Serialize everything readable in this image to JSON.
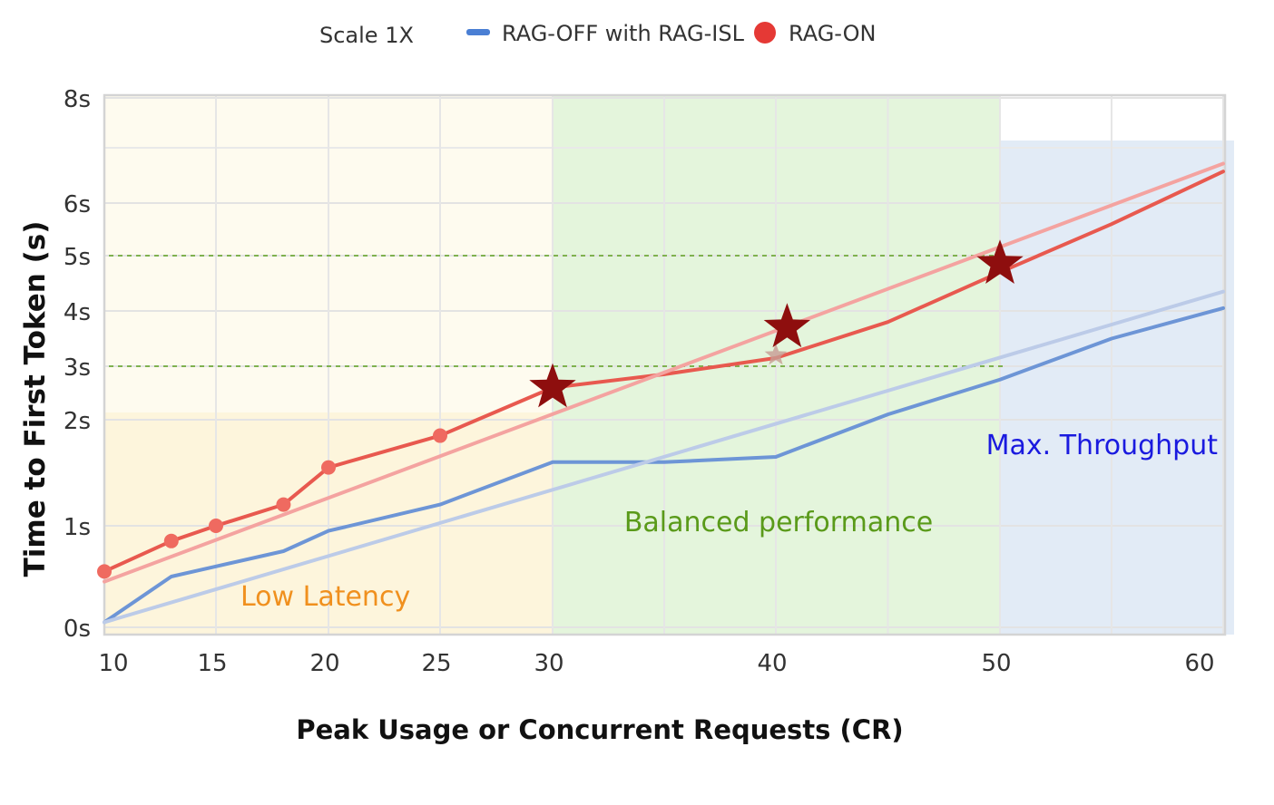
{
  "chart_data": {
    "type": "line",
    "title": "",
    "xlabel": "Peak Usage or Concurrent Requests (CR)",
    "ylabel": "Time to First Token (s)",
    "x_ticks": [
      10,
      15,
      20,
      25,
      30,
      40,
      50,
      60
    ],
    "x_tick_labels": [
      "10",
      "15",
      "20",
      "25",
      "30",
      "40",
      "50",
      "60"
    ],
    "y_ticks": [
      0,
      1,
      2,
      3,
      4,
      5,
      6,
      8
    ],
    "y_tick_labels": [
      "0s",
      "1s",
      "2s",
      "3s",
      "4s",
      "5s",
      "6s",
      "8s"
    ],
    "xlim": [
      10,
      61
    ],
    "ylim": [
      0,
      8
    ],
    "legend": {
      "position": "top-center",
      "items": [
        {
          "label": "Scale 1X",
          "marker": "none"
        },
        {
          "label": "RAG-OFF with RAG-ISL",
          "marker": "line",
          "color": "#4a7fd4"
        },
        {
          "label": "RAG-ON",
          "marker": "dot",
          "color": "#e53935"
        }
      ]
    },
    "series": [
      {
        "name": "RAG-ON",
        "color": "#e8594f",
        "x": [
          10,
          13,
          15,
          18,
          20,
          25,
          30,
          35,
          40,
          45,
          50,
          55,
          60
        ],
        "y": [
          0.55,
          0.85,
          1.0,
          1.2,
          1.55,
          1.85,
          2.6,
          2.85,
          3.15,
          3.8,
          4.7,
          5.6,
          6.6
        ],
        "markers_at": [
          10,
          13,
          15,
          18,
          20,
          25
        ]
      },
      {
        "name": "RAG-ON trend",
        "color": "#f4a3a0",
        "x": [
          10,
          60
        ],
        "y": [
          0.45,
          6.75
        ]
      },
      {
        "name": "RAG-OFF with RAG-ISL",
        "color": "#6d95d6",
        "x": [
          10,
          13,
          15,
          18,
          20,
          25,
          30,
          35,
          40,
          45,
          50,
          55,
          60
        ],
        "y": [
          0.05,
          0.5,
          0.6,
          0.75,
          0.95,
          1.2,
          1.6,
          1.6,
          1.65,
          2.1,
          2.75,
          3.5,
          4.05
        ]
      },
      {
        "name": "RAG-OFF trend",
        "color": "#bccbe8",
        "x": [
          10,
          60
        ],
        "y": [
          0.05,
          4.35
        ]
      }
    ],
    "star_markers": [
      {
        "x": 30,
        "y": 2.6
      },
      {
        "x": 40.5,
        "y": 3.7
      },
      {
        "x": 50,
        "y": 4.85
      }
    ],
    "faint_star": {
      "x": 40,
      "y": 3.2
    },
    "reference_lines_y": [
      3,
      5
    ],
    "zones": [
      {
        "label": "Low Latency",
        "x_start": 10,
        "x_end": 30,
        "color": "#fdf3d6",
        "label_color": "#f0901e"
      },
      {
        "label": "Balanced performance",
        "x_start": 30,
        "x_end": 50,
        "color": "#dff3d6",
        "label_color": "#5a9a1a"
      },
      {
        "label": "Max. Throughput",
        "x_start": 50,
        "x_end": 61,
        "color": "#dde7f4",
        "label_color": "#1a1adf"
      }
    ],
    "grid": true
  }
}
